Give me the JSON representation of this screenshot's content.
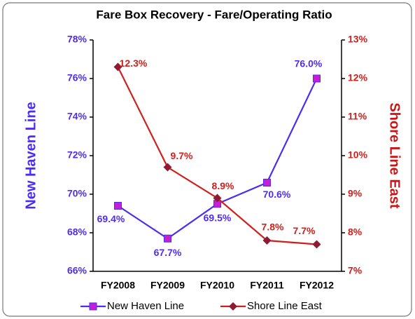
{
  "chart_data": {
    "type": "line",
    "title": "Fare Box Recovery - Fare/Operating Ratio",
    "ylabel": "New Haven Line",
    "y2label": "Shore Line East",
    "categories": [
      "FY2008",
      "FY2009",
      "FY2010",
      "FY2011",
      "FY2012"
    ],
    "series": [
      {
        "name": "New Haven Line",
        "color": "#4f2cf0",
        "marker_color": "#c21fd6",
        "marker": "square",
        "values": [
          69.4,
          67.7,
          69.5,
          70.6,
          76.0
        ],
        "value_labels": [
          "69.4%",
          "67.7%",
          "69.5%",
          "70.6%",
          "76.0%"
        ]
      },
      {
        "name": "Shore Line East",
        "color": "#d0201e",
        "marker_color": "#8e1a34",
        "marker": "diamond",
        "axis": "y2",
        "values": [
          12.3,
          9.7,
          8.9,
          7.8,
          7.7
        ],
        "value_labels": [
          "12.3%",
          "9.7%",
          "8.9%",
          "7.8%",
          "7.7%"
        ]
      }
    ],
    "ylim": [
      66,
      78
    ],
    "yticks": [
      {
        "value": 66,
        "label": "66%"
      },
      {
        "value": 68,
        "label": "68%"
      },
      {
        "value": 70,
        "label": "70%"
      },
      {
        "value": 72,
        "label": "72%"
      },
      {
        "value": 74,
        "label": "74%"
      },
      {
        "value": 76,
        "label": "76%"
      },
      {
        "value": 78,
        "label": "78%"
      }
    ],
    "y2lim": [
      7,
      13
    ],
    "y2ticks": [
      {
        "value": 7,
        "label": "7%"
      },
      {
        "value": 8,
        "label": "8%"
      },
      {
        "value": 9,
        "label": "9%"
      },
      {
        "value": 10,
        "label": "10%"
      },
      {
        "value": 11,
        "label": "11%"
      },
      {
        "value": 12,
        "label": "12%"
      },
      {
        "value": 13,
        "label": "13%"
      }
    ],
    "grid": false,
    "legend": "bottom"
  }
}
